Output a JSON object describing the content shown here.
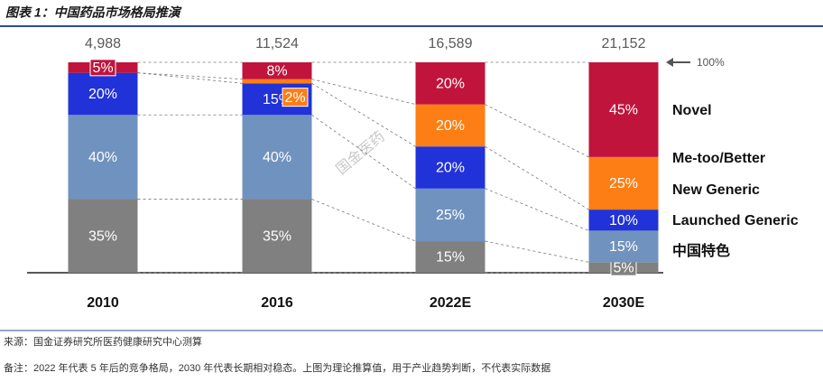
{
  "header": {
    "title": "图表 1：中国药品市场格局推演"
  },
  "chart_data": {
    "type": "stacked_bar",
    "categories": [
      "2010",
      "2016",
      "2022E",
      "2030E"
    ],
    "totals": [
      {
        "value": 4988,
        "label": "4,988"
      },
      {
        "value": 11524,
        "label": "11,524"
      },
      {
        "value": 16589,
        "label": "16,589"
      },
      {
        "value": 21152,
        "label": "21,152"
      }
    ],
    "ylim": [
      0,
      100
    ],
    "reference_label": "100%",
    "watermark": "国金医药",
    "series": [
      {
        "name": "中国特色",
        "color": "#808080",
        "values": [
          35,
          35,
          15,
          5
        ],
        "value_labels": [
          "35%",
          "35%",
          "15%",
          "5%"
        ]
      },
      {
        "name": "Launched Generic",
        "color": "#7092be",
        "values": [
          40,
          40,
          25,
          15
        ],
        "value_labels": [
          "40%",
          "40%",
          "25%",
          "15%"
        ]
      },
      {
        "name": "New Generic",
        "color": "#2132d8",
        "values": [
          20,
          15,
          20,
          10
        ],
        "value_labels": [
          "20%",
          "15%",
          "20%",
          "10%"
        ]
      },
      {
        "name": "Me-too/Better",
        "color": "#fd7e14",
        "values": [
          null,
          2,
          20,
          25
        ],
        "value_labels": [
          null,
          "2%",
          "20%",
          "25%"
        ]
      },
      {
        "name": "Novel",
        "color": "#c0143c",
        "values": [
          5,
          8,
          20,
          45
        ],
        "value_labels": [
          "5%",
          "8%",
          "20%",
          "45%"
        ]
      }
    ]
  },
  "footer": {
    "source": "来源：国金证券研究所医药健康研究中心测算",
    "note": "备注：2022 年代表 5 年后的竞争格局，2030 年代表长期相对稳态。上图为理论推算值，用于产业趋势判断，不代表实际数据"
  }
}
